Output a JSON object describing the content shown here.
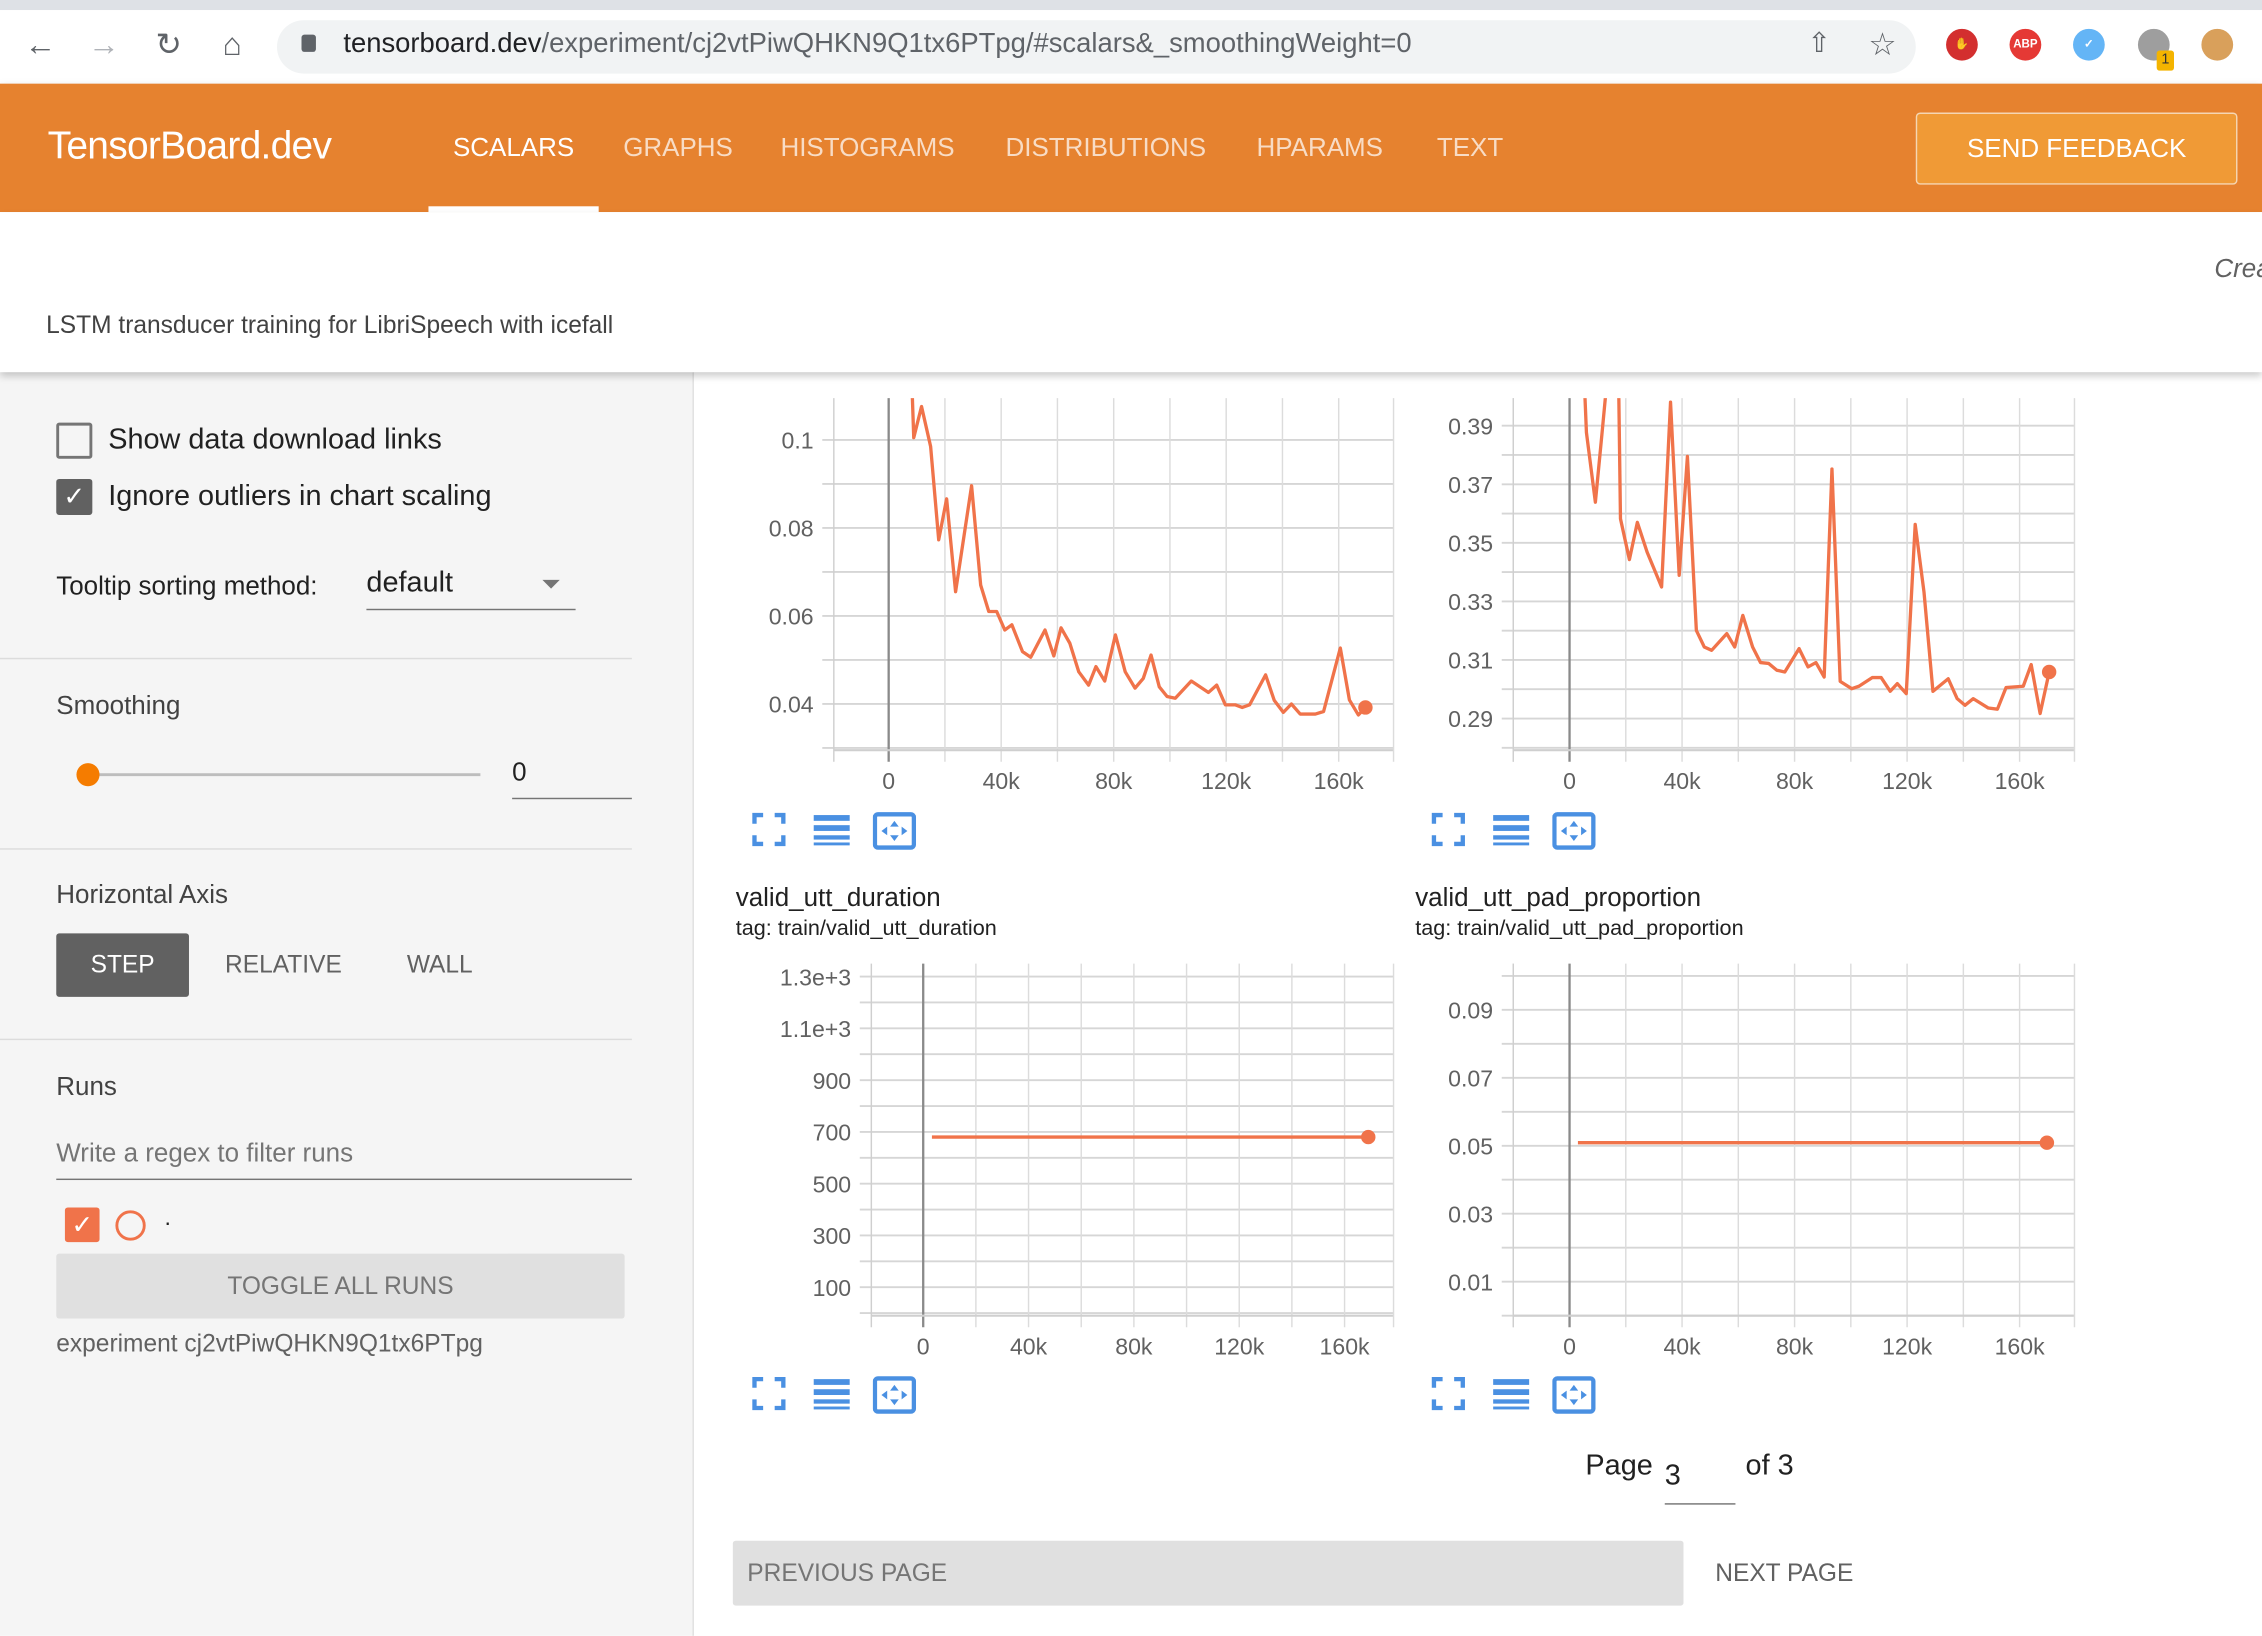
{
  "browser": {
    "url_host": "tensorboard.dev",
    "url_path": "/experiment/cj2vtPiwQHKN9Q1tx6PTpg/#scalars&_smoothingWeight=0",
    "extension_badge": "1"
  },
  "header": {
    "brand": "TensorBoard.dev",
    "tabs": [
      {
        "label": "SCALARS",
        "active": true
      },
      {
        "label": "GRAPHS"
      },
      {
        "label": "HISTOGRAMS"
      },
      {
        "label": "DISTRIBUTIONS"
      },
      {
        "label": "HPARAMS"
      },
      {
        "label": "TEXT"
      }
    ],
    "send_feedback": "SEND FEEDBACK",
    "accent": "#e6822f"
  },
  "info": {
    "created_partial": "Crea",
    "description": "LSTM transducer training for LibriSpeech with icefall"
  },
  "sidebar": {
    "show_download_links": {
      "label": "Show data download links",
      "checked": false
    },
    "ignore_outliers": {
      "label": "Ignore outliers in chart scaling",
      "checked": true
    },
    "tooltip_sorting": {
      "label": "Tooltip sorting method:",
      "value": "default"
    },
    "smoothing": {
      "label": "Smoothing",
      "value": "0",
      "level": 0
    },
    "horizontal_axis": {
      "label": "Horizontal Axis",
      "options": [
        "STEP",
        "RELATIVE",
        "WALL"
      ],
      "selected": "STEP"
    },
    "runs": {
      "label": "Runs",
      "filter_placeholder": "Write a regex to filter runs",
      "run_name": ".",
      "run_color": "#f0734a",
      "toggle_all": "TOGGLE ALL RUNS",
      "experiment": "experiment cj2vtPiwQHKN9Q1tx6PTpg"
    }
  },
  "pagination": {
    "page_label": "Page",
    "page": "3",
    "of_label": "of 3",
    "previous": "PREVIOUS PAGE",
    "next": "NEXT PAGE"
  },
  "chart_data": [
    {
      "type": "line",
      "title": "",
      "xlim": [
        -19500,
        179500
      ],
      "ylim": [
        0.0295,
        0.1095
      ],
      "yticks": [
        0.04,
        0.06,
        0.08,
        0.1
      ],
      "ytick_labels": [
        "0.04",
        "0.06",
        "0.08",
        "0.1"
      ],
      "ygrid_step": 0.01,
      "xticks": [
        0,
        40000,
        80000,
        120000,
        160000
      ],
      "xtick_labels": [
        "0",
        "40k",
        "80k",
        "120k",
        "160k"
      ],
      "xgrid_step": 20000,
      "grid": true,
      "color": "#f0734a",
      "x": [
        8300,
        8900,
        11700,
        14900,
        17800,
        20600,
        23800,
        29500,
        32700,
        35600,
        38400,
        41300,
        43800,
        47600,
        50500,
        55600,
        58700,
        61300,
        64400,
        67600,
        71100,
        73700,
        76800,
        80600,
        84100,
        87600,
        90500,
        93300,
        96200,
        99000,
        101900,
        107600,
        113700,
        116600,
        119700,
        123200,
        125700,
        128300,
        134000,
        137100,
        140300,
        143200,
        146300,
        151700,
        154600,
        160600,
        163800,
        167000,
        169500
      ],
      "y": [
        0.112,
        0.1005,
        0.1076,
        0.0985,
        0.0773,
        0.0866,
        0.0655,
        0.0896,
        0.067,
        0.061,
        0.061,
        0.0568,
        0.058,
        0.0519,
        0.0506,
        0.0568,
        0.0509,
        0.0573,
        0.0538,
        0.0473,
        0.0443,
        0.0485,
        0.0452,
        0.0557,
        0.0473,
        0.0436,
        0.0458,
        0.0511,
        0.0439,
        0.0417,
        0.0413,
        0.0452,
        0.0426,
        0.0443,
        0.0398,
        0.0398,
        0.0392,
        0.0398,
        0.0466,
        0.0408,
        0.0381,
        0.04,
        0.0377,
        0.0377,
        0.0383,
        0.0527,
        0.0409,
        0.0375,
        0.0392
      ]
    },
    {
      "type": "line",
      "title": "",
      "xlim": [
        -20000,
        179500
      ],
      "ylim": [
        0.2792,
        0.3994
      ],
      "yticks": [
        0.29,
        0.31,
        0.33,
        0.35,
        0.37,
        0.39
      ],
      "ytick_labels": [
        "0.29",
        "0.31",
        "0.33",
        "0.35",
        "0.37",
        "0.39"
      ],
      "ygrid_step": 0.01,
      "xticks": [
        0,
        40000,
        80000,
        120000,
        160000
      ],
      "xtick_labels": [
        "0",
        "40k",
        "80k",
        "120k",
        "160k"
      ],
      "xgrid_step": 20000,
      "grid": true,
      "color": "#f0734a",
      "x": [
        5400,
        6000,
        9200,
        11700,
        13000,
        17500,
        18100,
        21300,
        24100,
        27600,
        32700,
        35900,
        39000,
        41900,
        45100,
        47900,
        50500,
        55900,
        58700,
        61600,
        65100,
        67900,
        70800,
        73700,
        76500,
        81600,
        84800,
        87600,
        90500,
        93300,
        96200,
        100300,
        102900,
        107600,
        110800,
        114000,
        116500,
        119700,
        122900,
        126000,
        129200,
        134600,
        137800,
        140600,
        143500,
        148900,
        152100,
        155200,
        161300,
        164100,
        167300,
        170500
      ],
      "y": [
        0.402,
        0.3877,
        0.3639,
        0.3889,
        0.402,
        0.402,
        0.3582,
        0.3443,
        0.357,
        0.3468,
        0.3349,
        0.398,
        0.3389,
        0.3795,
        0.3201,
        0.3144,
        0.3133,
        0.319,
        0.3144,
        0.3252,
        0.3144,
        0.3091,
        0.3088,
        0.3065,
        0.3059,
        0.3139,
        0.3076,
        0.3091,
        0.3042,
        0.3752,
        0.3027,
        0.3002,
        0.301,
        0.304,
        0.304,
        0.2993,
        0.3019,
        0.2985,
        0.3563,
        0.3332,
        0.2993,
        0.3036,
        0.2968,
        0.2945,
        0.2968,
        0.2936,
        0.2932,
        0.3006,
        0.301,
        0.3084,
        0.2917,
        0.3059
      ]
    },
    {
      "type": "line",
      "title": "valid_utt_duration",
      "subtitle": "tag: train/valid_utt_duration",
      "xlim": [
        -19700,
        178600
      ],
      "ylim": [
        -10,
        1350
      ],
      "yticks": [
        100,
        300,
        500,
        700,
        900,
        1100,
        1300
      ],
      "ytick_labels": [
        "100",
        "300",
        "500",
        "700",
        "900",
        "1.1e+3",
        "1.3e+3"
      ],
      "ygrid_step": 100,
      "xticks": [
        0,
        40000,
        80000,
        120000,
        160000
      ],
      "xtick_labels": [
        "0",
        "40k",
        "80k",
        "120k",
        "160k"
      ],
      "xgrid_step": 20000,
      "grid": true,
      "color": "#f0734a",
      "x": [
        3300,
        169000
      ],
      "y": [
        680,
        680
      ]
    },
    {
      "type": "line",
      "title": "valid_utt_pad_proportion",
      "subtitle": "tag: train/valid_utt_pad_proportion",
      "xlim": [
        -20000,
        179500
      ],
      "ylim": [
        0.0,
        0.1036
      ],
      "yticks": [
        0.01,
        0.03,
        0.05,
        0.07,
        0.09
      ],
      "ytick_labels": [
        "0.01",
        "0.03",
        "0.05",
        "0.07",
        "0.09"
      ],
      "ygrid_step": 0.01,
      "xticks": [
        0,
        40000,
        80000,
        120000,
        160000
      ],
      "xtick_labels": [
        "0",
        "40k",
        "80k",
        "120k",
        "160k"
      ],
      "xgrid_step": 20000,
      "grid": true,
      "color": "#f0734a",
      "x": [
        3000,
        169700
      ],
      "y": [
        0.0509,
        0.0509
      ]
    }
  ]
}
